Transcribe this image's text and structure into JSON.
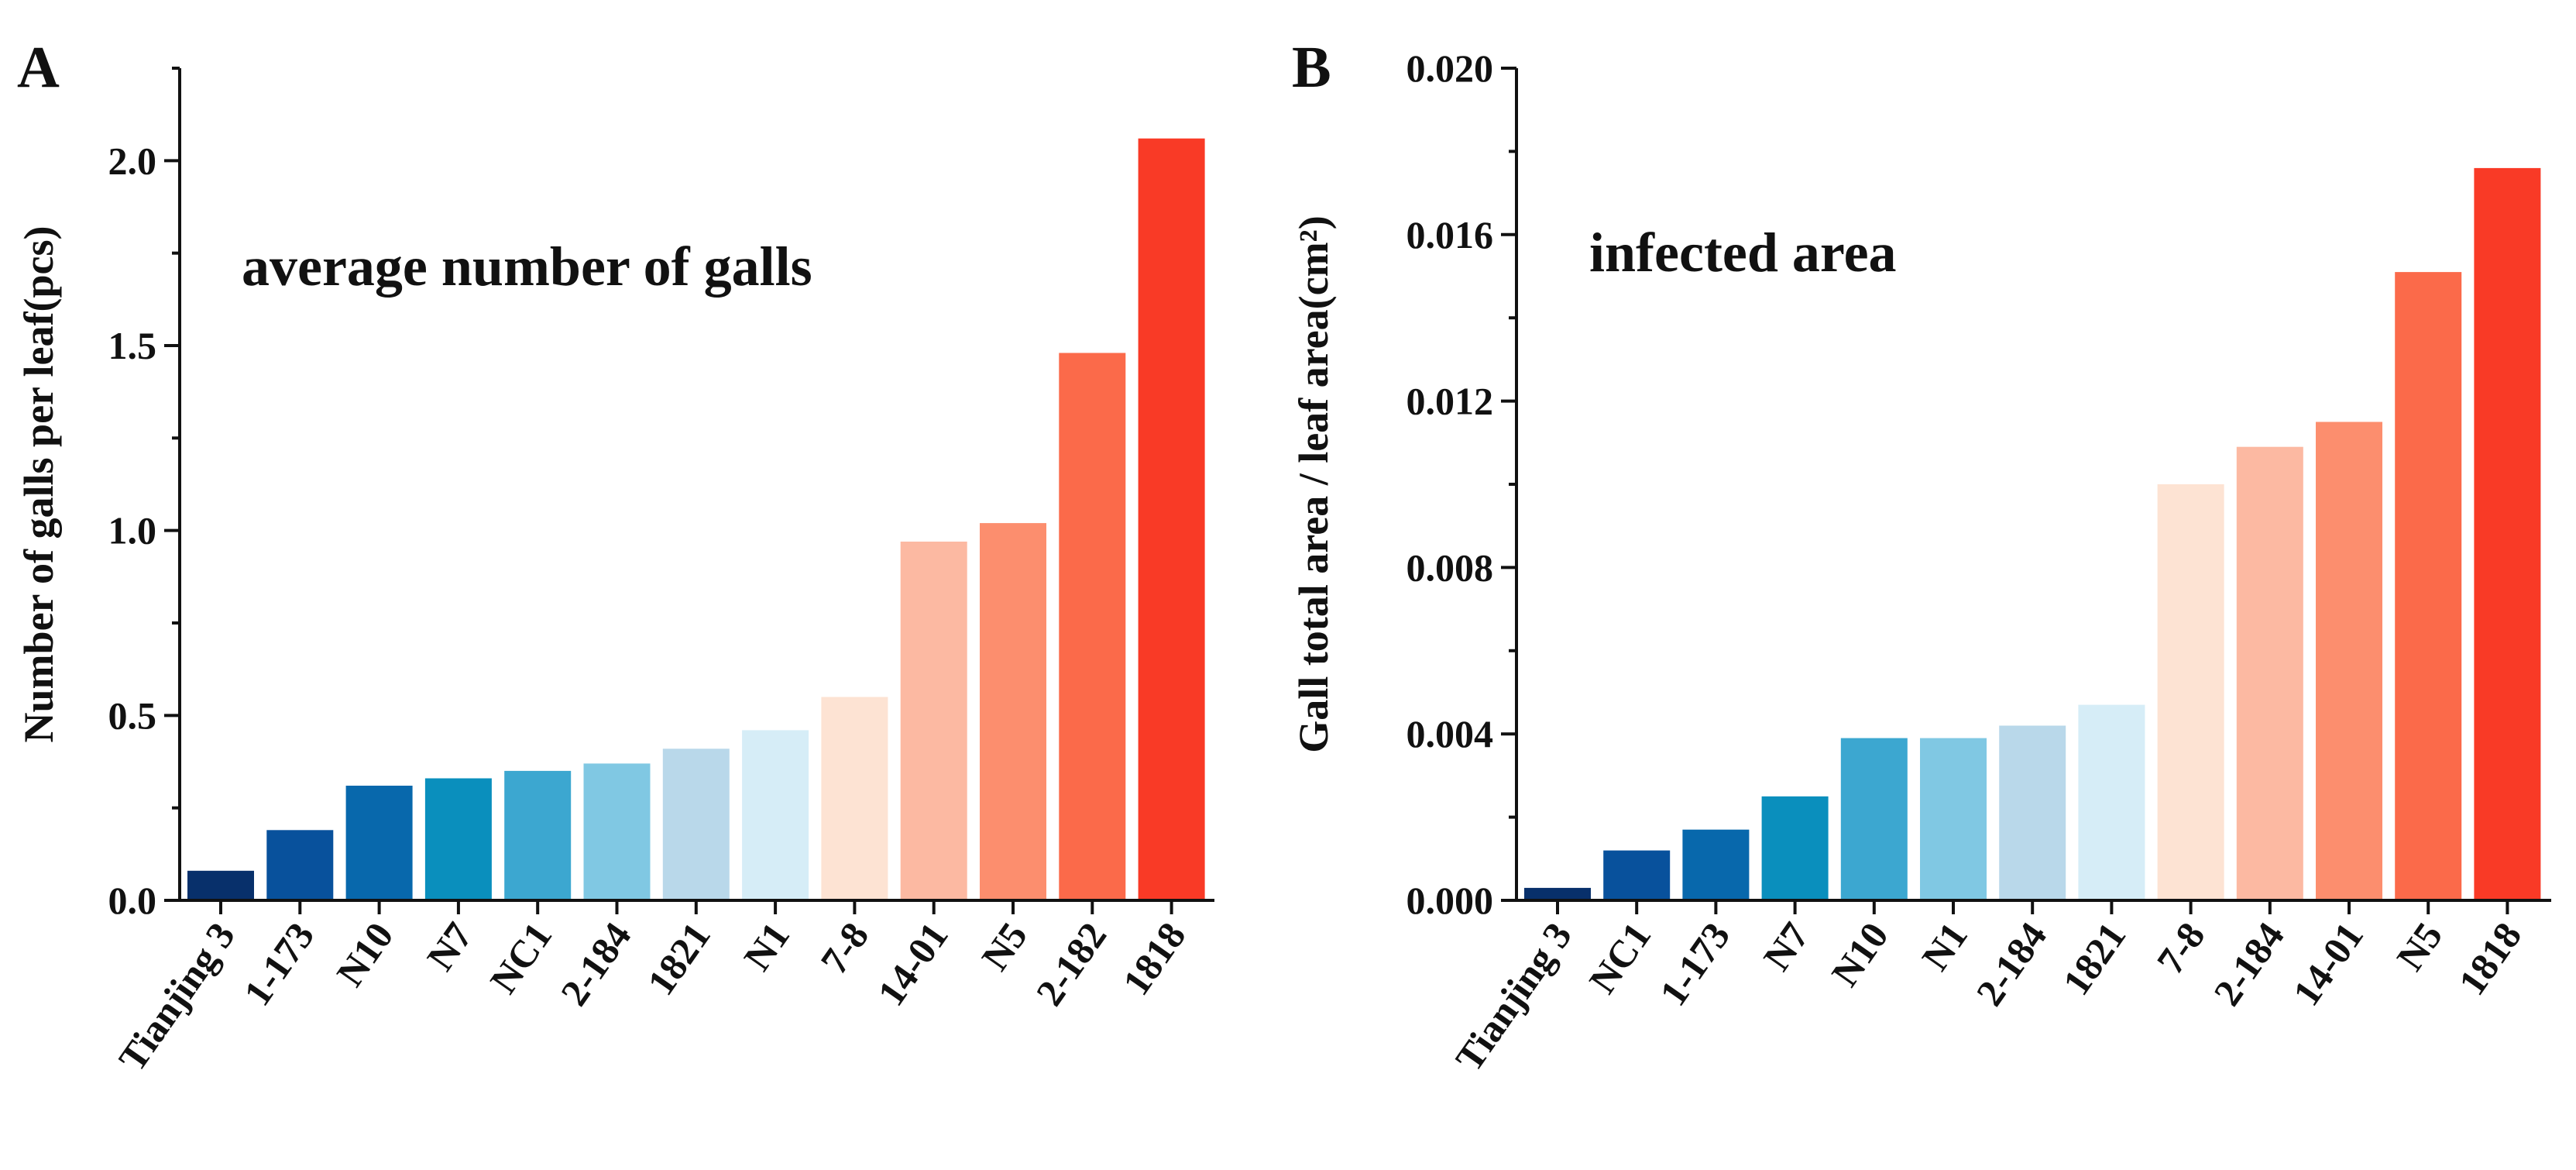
{
  "chart_data": [
    {
      "type": "bar",
      "panel_label": "A",
      "annotation": "average number of galls",
      "ylabel": "Number of galls per leaf(pcs)",
      "xlabel": "",
      "categories": [
        "Tianjing 3",
        "1-173",
        "N10",
        "N7",
        "NC1",
        "2-184",
        "1821",
        "N1",
        "7-8",
        "14-01",
        "N5",
        "2-182",
        "1818"
      ],
      "values": [
        0.08,
        0.19,
        0.31,
        0.33,
        0.35,
        0.37,
        0.41,
        0.46,
        0.55,
        0.97,
        1.02,
        1.48,
        2.06
      ],
      "colors": [
        "#08306b",
        "#08519c",
        "#0868ac",
        "#0a8fbd",
        "#3ca7d0",
        "#80c8e3",
        "#b9d8ea",
        "#d6edf7",
        "#fde3d3",
        "#fcb9a2",
        "#fc8e6e",
        "#fb6a4a",
        "#f93a26"
      ],
      "ylim": [
        0,
        2.25
      ],
      "yticks": [
        0.0,
        0.5,
        1.0,
        1.5,
        2.0
      ],
      "ytick_labels": [
        "0.0",
        "0.5",
        "1.0",
        "1.5",
        "2.0"
      ],
      "grid": false,
      "legend": "none"
    },
    {
      "type": "bar",
      "panel_label": "B",
      "annotation": "infected area",
      "ylabel": "Gall total area / leaf area(cm²)",
      "xlabel": "",
      "categories": [
        "Tianjing 3",
        "NC1",
        "1-173",
        "N7",
        "N10",
        "N1",
        "2-184",
        "1821",
        "7-8",
        "2-184",
        "14-01",
        "N5",
        "1818"
      ],
      "values": [
        0.0003,
        0.0012,
        0.0017,
        0.0025,
        0.0039,
        0.0039,
        0.0042,
        0.0047,
        0.01,
        0.0109,
        0.0115,
        0.0151,
        0.0176
      ],
      "colors": [
        "#08306b",
        "#08519c",
        "#0868ac",
        "#0a8fbd",
        "#3ca7d0",
        "#80c8e3",
        "#b9d8ea",
        "#d6edf7",
        "#fde3d3",
        "#fcb9a2",
        "#fc8e6e",
        "#fb6a4a",
        "#f93a26"
      ],
      "ylim": [
        0,
        0.02
      ],
      "yticks": [
        0.0,
        0.004,
        0.008,
        0.012,
        0.016,
        0.02
      ],
      "ytick_labels": [
        "0.000",
        "0.004",
        "0.008",
        "0.012",
        "0.016",
        "0.020"
      ],
      "grid": false,
      "legend": "none"
    }
  ]
}
